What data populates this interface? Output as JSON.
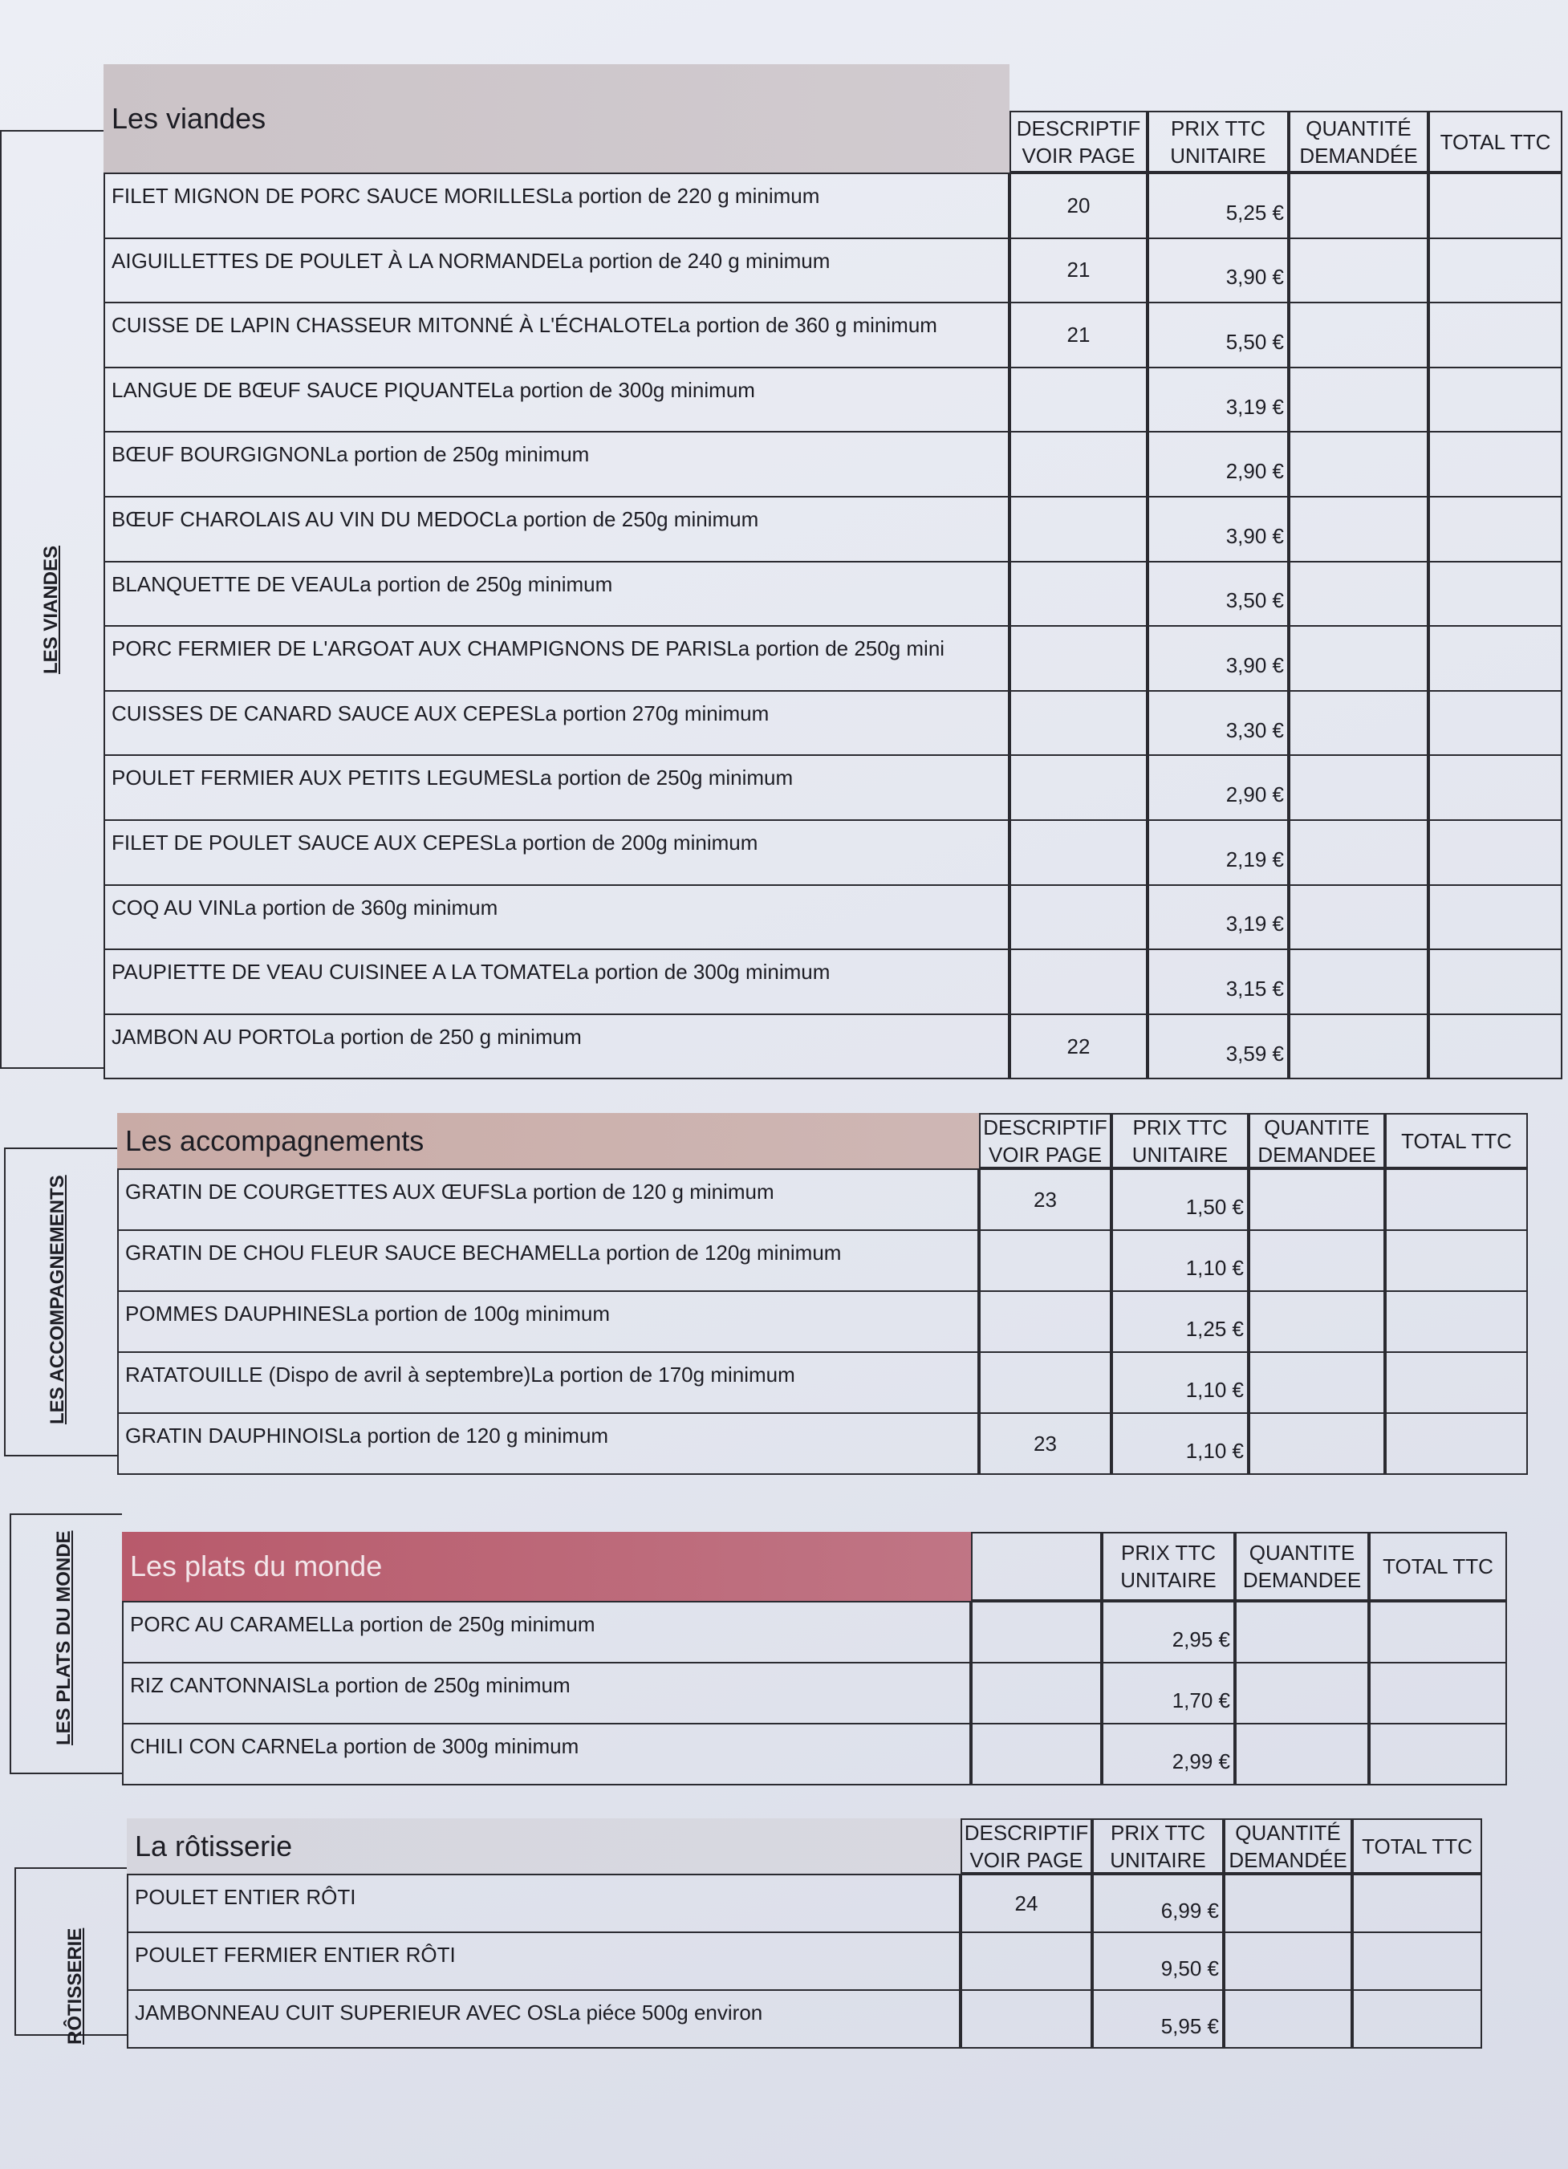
{
  "headers": {
    "descriptif": [
      "DESCRIPTIF",
      "VOIR PAGE"
    ],
    "prix": [
      "PRIX TTC",
      "UNITAIRE"
    ],
    "quantite": [
      "QUANTITÉ",
      "DEMANDÉE"
    ],
    "quantite_plain": [
      "QUANTITE",
      "DEMANDEE"
    ],
    "total": "TOTAL TTC"
  },
  "sections": [
    {
      "id": "viandes",
      "title": "Les viandes",
      "side_label": "LES VIANDES",
      "band_color": "#cbc3c7",
      "show_desc_header": true,
      "qty_key": "quantite",
      "items": [
        {
          "name": "FILET MIGNON DE PORC SAUCE MORILLES",
          "portion": "La portion de 220 g minimum",
          "page": "20",
          "price": "5,25 €"
        },
        {
          "name": "AIGUILLETTES DE POULET À LA NORMANDE",
          "portion": "La portion de 240 g minimum",
          "page": "21",
          "price": "3,90 €"
        },
        {
          "name": "CUISSE DE LAPIN CHASSEUR MITONNÉ À L'ÉCHALOTE",
          "portion": "La portion de 360 g minimum",
          "page": "21",
          "price": "5,50 €"
        },
        {
          "name": "LANGUE DE BŒUF SAUCE PIQUANTE",
          "portion": "La portion de 300g minimum",
          "page": "",
          "price": "3,19 €"
        },
        {
          "name": "BŒUF BOURGIGNON",
          "portion": "La portion de 250g minimum",
          "page": "",
          "price": "2,90 €"
        },
        {
          "name": "BŒUF CHAROLAIS AU VIN DU MEDOC",
          "portion": "La portion de 250g minimum",
          "page": "",
          "price": "3,90 €"
        },
        {
          "name": "BLANQUETTE DE VEAU",
          "portion": "La portion de 250g minimum",
          "page": "",
          "price": "3,50 €"
        },
        {
          "name": "PORC FERMIER DE L'ARGOAT AUX CHAMPIGNONS DE PARIS",
          "portion": "La portion de 250g mini",
          "page": "",
          "price": "3,90 €"
        },
        {
          "name": "CUISSES DE CANARD SAUCE AUX CEPES",
          "portion": "La portion 270g minimum",
          "page": "",
          "price": "3,30 €"
        },
        {
          "name": "POULET FERMIER AUX PETITS LEGUMES",
          "portion": "La portion de 250g minimum",
          "page": "",
          "price": "2,90 €"
        },
        {
          "name": "FILET DE POULET SAUCE AUX CEPES",
          "portion": "La portion de 200g minimum",
          "page": "",
          "price": "2,19 €"
        },
        {
          "name": "COQ AU VIN",
          "portion": "La portion de 360g minimum",
          "page": "",
          "price": "3,19 €"
        },
        {
          "name": "PAUPIETTE DE VEAU CUISINEE A LA TOMATE",
          "portion": "La portion de 300g minimum",
          "page": "",
          "price": "3,15 €"
        },
        {
          "name": "JAMBON AU PORTO",
          "portion": "La portion de 250 g minimum",
          "page": "22",
          "price": "3,59 €"
        }
      ]
    },
    {
      "id": "accompagnements",
      "title": "Les accompagnements",
      "side_label": "LES ACCOMPAGNEMENTS",
      "band_color": "#c9aba6",
      "show_desc_header": true,
      "qty_key": "quantite_plain",
      "items": [
        {
          "name": "GRATIN DE COURGETTES AUX ŒUFS",
          "portion": "La portion de 120 g minimum",
          "page": "23",
          "price": "1,50 €"
        },
        {
          "name": "GRATIN DE CHOU FLEUR SAUCE BECHAMEL",
          "portion": "La portion de 120g minimum",
          "page": "",
          "price": "1,10 €"
        },
        {
          "name": "POMMES DAUPHINES",
          "portion": "La portion de 100g minimum",
          "page": "",
          "price": "1,25 €"
        },
        {
          "name": "RATATOUILLE (Dispo de avril à septembre)",
          "portion": "La portion de 170g minimum",
          "page": "",
          "price": "1,10 €"
        },
        {
          "name": "GRATIN DAUPHINOIS",
          "portion": "La portion de 120 g minimum",
          "page": "23",
          "price": "1,10 €"
        }
      ]
    },
    {
      "id": "plats-du-monde",
      "title": "Les plats du monde",
      "side_label": "LES PLATS DU MONDE",
      "band_color": "#b85a6b",
      "show_desc_header": false,
      "qty_key": "quantite_plain",
      "items": [
        {
          "name": "PORC AU CARAMEL",
          "portion": "La portion de 250g minimum",
          "page": "",
          "price": "2,95 €"
        },
        {
          "name": "RIZ CANTONNAIS ",
          "portion": "La portion de 250g minimum",
          "page": "",
          "price": "1,70 €"
        },
        {
          "name": "CHILI CON CARNE",
          "portion": "La portion de 300g minimum",
          "page": "",
          "price": "2,99 €"
        }
      ]
    },
    {
      "id": "rotisserie",
      "title": "La rôtisserie",
      "side_label": "RÔTISSERIE",
      "band_color": "#d6d6de",
      "show_desc_header": true,
      "qty_key": "quantite",
      "items": [
        {
          "name": "POULET ENTIER RÔTI",
          "portion": "",
          "page": "24",
          "price": "6,99 €"
        },
        {
          "name": "POULET FERMIER ENTIER RÔTI",
          "portion": "",
          "page": "",
          "price": "9,50 €"
        },
        {
          "name": "JAMBONNEAU CUIT SUPERIEUR AVEC OS",
          "portion": "La piéce 500g environ",
          "page": "",
          "price": "5,95 €"
        }
      ]
    }
  ]
}
